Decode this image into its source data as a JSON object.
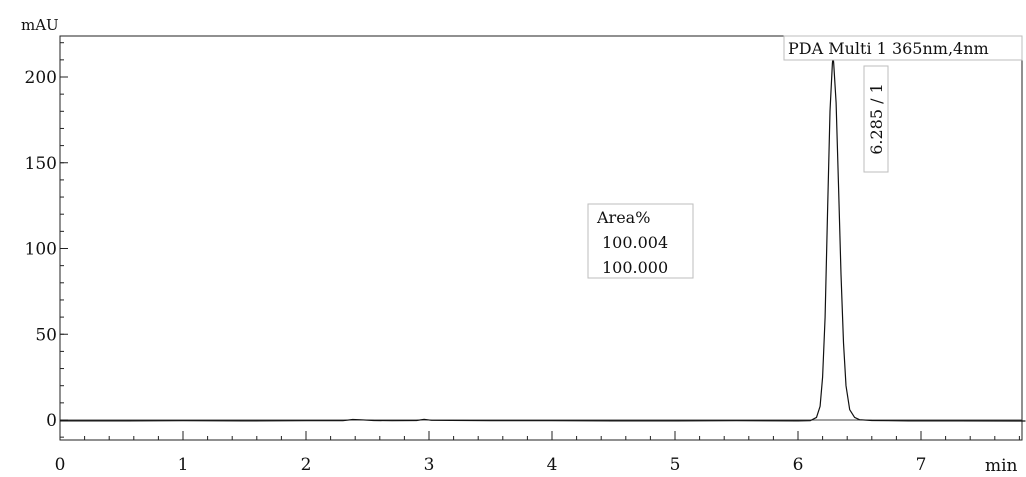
{
  "chart_data": {
    "type": "line",
    "title": "",
    "xlabel": "min",
    "ylabel": "mAU",
    "xlim": [
      0,
      7.85
    ],
    "ylim": [
      -12,
      224
    ],
    "x_ticks": [
      0,
      1,
      2,
      3,
      4,
      5,
      6,
      7
    ],
    "y_ticks": [
      0,
      50,
      100,
      150,
      200
    ],
    "grid": false,
    "legend": {
      "text": "PDA Multi 1 365nm,4nm",
      "placement": "top-right"
    },
    "series": [
      {
        "name": "PDA Multi 1 365nm,4nm",
        "x": [
          0,
          0.5,
          1.0,
          1.5,
          2.0,
          2.3,
          2.38,
          2.45,
          2.55,
          2.7,
          2.9,
          2.96,
          3.02,
          3.5,
          4.0,
          4.5,
          5.0,
          5.5,
          6.0,
          6.1,
          6.15,
          6.18,
          6.2,
          6.22,
          6.24,
          6.26,
          6.28,
          6.285,
          6.29,
          6.31,
          6.33,
          6.35,
          6.37,
          6.39,
          6.42,
          6.46,
          6.5,
          6.6,
          6.9,
          7.3,
          7.85
        ],
        "y": [
          -0.5,
          -0.5,
          -0.4,
          -0.5,
          -0.4,
          -0.4,
          0.3,
          0.1,
          -0.3,
          -0.4,
          -0.3,
          0.4,
          -0.2,
          -0.4,
          -0.4,
          -0.5,
          -0.5,
          -0.4,
          -0.5,
          -0.4,
          1.5,
          8,
          25,
          60,
          120,
          180,
          208,
          212,
          208,
          185,
          135,
          85,
          45,
          20,
          6,
          1.5,
          0.2,
          -0.3,
          -0.5,
          -0.5,
          -0.6
        ]
      }
    ],
    "annotations": [
      {
        "type": "table",
        "title": "Area%",
        "values": [
          "100.004",
          "100.000"
        ]
      },
      {
        "type": "peak-label",
        "text": "6.285 / 1",
        "x": 6.285,
        "y": 212
      }
    ]
  }
}
